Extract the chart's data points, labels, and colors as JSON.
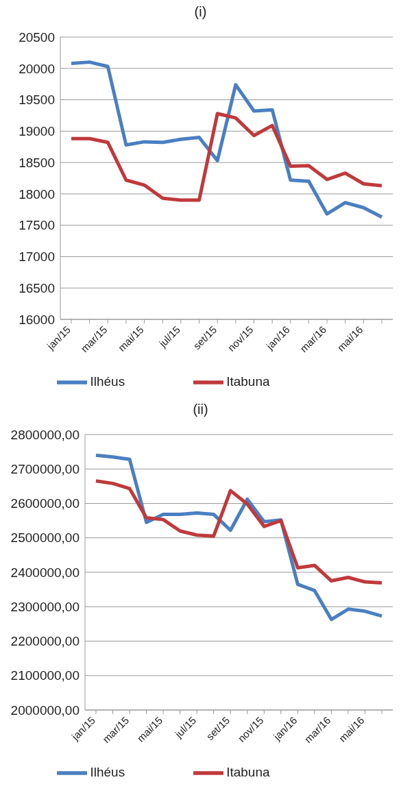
{
  "chart_data": [
    {
      "type": "line",
      "title": "(i)",
      "categories": [
        "jan/15",
        null,
        "mar/15",
        null,
        "mai/15",
        null,
        "jul/15",
        null,
        "set/15",
        null,
        "nov/15",
        null,
        "jan/16",
        null,
        "mar/16",
        null,
        "mai/16",
        null
      ],
      "series": [
        {
          "name": "Ilhéus",
          "color": "#4a7fc1",
          "values": [
            20080,
            20100,
            20030,
            18780,
            18830,
            18820,
            18870,
            18900,
            18530,
            19740,
            19320,
            19340,
            18220,
            18200,
            17680,
            17860,
            17780,
            17630
          ]
        },
        {
          "name": "Itabuna",
          "color": "#c0393b",
          "values": [
            18880,
            18880,
            18820,
            18220,
            18140,
            17930,
            17900,
            17900,
            19280,
            19210,
            18930,
            19090,
            18440,
            18450,
            18230,
            18330,
            18160,
            18130
          ]
        }
      ],
      "ylim": [
        16000,
        20500
      ],
      "yticks": [
        16000,
        16500,
        17000,
        17500,
        18000,
        18500,
        19000,
        19500,
        20000,
        20500
      ],
      "grid": "y",
      "legend": "bottom",
      "marker": "none",
      "line_style": "solid"
    },
    {
      "type": "line",
      "title": "(ii)",
      "categories": [
        "jan/15",
        null,
        "mar/15",
        null,
        "mai/15",
        null,
        "jul/15",
        null,
        "set/15",
        null,
        "nov/15",
        null,
        "jan/16",
        null,
        "mar/16",
        null,
        "mai/16",
        null
      ],
      "series": [
        {
          "name": "Ilhéus",
          "color": "#4a7fc1",
          "values": [
            2740000,
            2735000,
            2728000,
            2545000,
            2568000,
            2568000,
            2572000,
            2568000,
            2522000,
            2612000,
            2547000,
            2552000,
            2365000,
            2347000,
            2263000,
            2293000,
            2287000,
            2273000
          ]
        },
        {
          "name": "Itabuna",
          "color": "#c0393b",
          "values": [
            2665000,
            2658000,
            2643000,
            2558000,
            2553000,
            2520000,
            2508000,
            2505000,
            2637000,
            2598000,
            2533000,
            2550000,
            2413000,
            2420000,
            2375000,
            2385000,
            2372000,
            2369000
          ]
        }
      ],
      "ylim": [
        2000000,
        2800000
      ],
      "yticks": [
        {
          "value": 2000000,
          "label": "2000000,00"
        },
        {
          "value": 2100000,
          "label": "2100000,00"
        },
        {
          "value": 2200000,
          "label": "2200000,00"
        },
        {
          "value": 2300000,
          "label": "2300000,00"
        },
        {
          "value": 2400000,
          "label": "2400000,00"
        },
        {
          "value": 2500000,
          "label": "2500000,00"
        },
        {
          "value": 2600000,
          "label": "2600000,00"
        },
        {
          "value": 2700000,
          "label": "2700000,00"
        },
        {
          "value": 2800000,
          "label": "2800000,00"
        }
      ],
      "grid": "y",
      "legend": "bottom",
      "marker": "none",
      "line_style": "solid"
    }
  ]
}
